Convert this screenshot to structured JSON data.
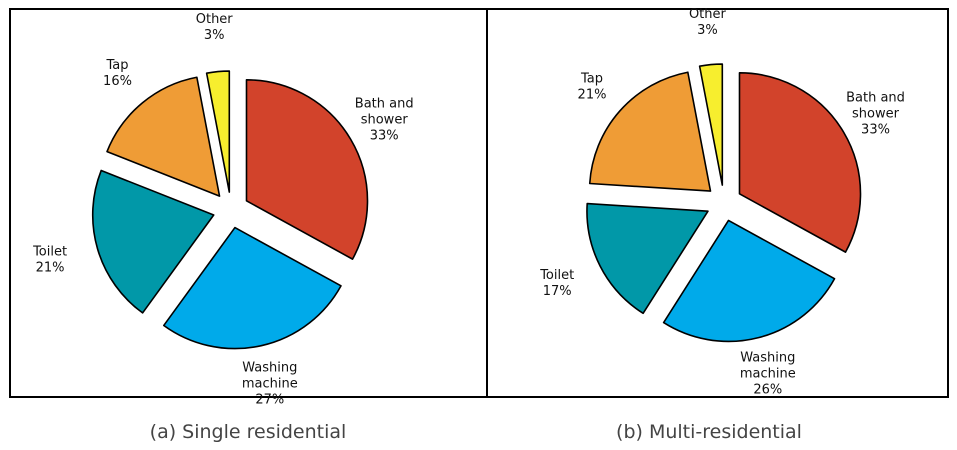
{
  "chart_data": [
    {
      "type": "pie",
      "caption": "(a) Single residential",
      "slices": [
        {
          "name": "Bath and shower",
          "label_lines": [
            "Bath and",
            "shower"
          ],
          "value": 33,
          "value_label": "33%",
          "color": "#d2432b"
        },
        {
          "name": "Washing machine",
          "label_lines": [
            "Washing",
            "machine"
          ],
          "value": 27,
          "value_label": "27%",
          "color": "#00aaea"
        },
        {
          "name": "Toilet",
          "label_lines": [
            "Toilet"
          ],
          "value": 21,
          "value_label": "21%",
          "color": "#0198a8"
        },
        {
          "name": "Tap",
          "label_lines": [
            "Tap"
          ],
          "value": 16,
          "value_label": "16%",
          "color": "#ef9c36"
        },
        {
          "name": "Other",
          "label_lines": [
            "Other"
          ],
          "value": 3,
          "value_label": "3%",
          "color": "#f7ee2e"
        }
      ]
    },
    {
      "type": "pie",
      "caption": "(b) Multi-residential",
      "slices": [
        {
          "name": "Bath and shower",
          "label_lines": [
            "Bath and",
            "shower"
          ],
          "value": 33,
          "value_label": "33%",
          "color": "#d2432b"
        },
        {
          "name": "Washing machine",
          "label_lines": [
            "Washing",
            "machine"
          ],
          "value": 26,
          "value_label": "26%",
          "color": "#00aaea"
        },
        {
          "name": "Toilet",
          "label_lines": [
            "Toilet"
          ],
          "value": 17,
          "value_label": "17%",
          "color": "#0198a8"
        },
        {
          "name": "Tap",
          "label_lines": [
            "Tap"
          ],
          "value": 21,
          "value_label": "21%",
          "color": "#ef9c36"
        },
        {
          "name": "Other",
          "label_lines": [
            "Other"
          ],
          "value": 3,
          "value_label": "3%",
          "color": "#f7ee2e"
        }
      ]
    }
  ]
}
